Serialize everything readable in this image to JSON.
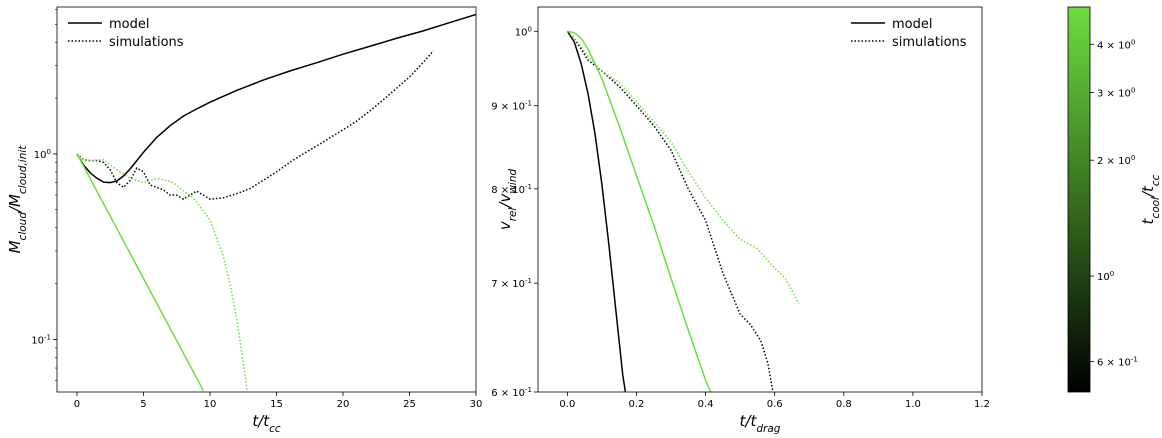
{
  "chart_data": [
    {
      "type": "line",
      "xlabel": "t/t_cc",
      "ylabel": "M_cloud/M_cloud,init",
      "yscale": "log",
      "xlim": [
        -1.5,
        30
      ],
      "ylim": [
        0.052,
        6.2
      ],
      "x_ticks": [
        "0",
        "5",
        "10",
        "15",
        "20",
        "25",
        "30"
      ],
      "y_ticks": [
        "10^-1",
        "10^0"
      ],
      "legend": {
        "placement": "top-left",
        "entries": [
          "model",
          "simulations"
        ]
      },
      "series": [
        {
          "name": "model",
          "style": "solid",
          "color": "#000000",
          "x": [
            0,
            0.5,
            1,
            1.5,
            2,
            2.5,
            3,
            3.5,
            4,
            4.5,
            5,
            6,
            7,
            8,
            9,
            10,
            12,
            14,
            16,
            18,
            20,
            22,
            24,
            26,
            28,
            30
          ],
          "y": [
            1.0,
            0.87,
            0.79,
            0.74,
            0.705,
            0.7,
            0.715,
            0.76,
            0.83,
            0.92,
            1.02,
            1.23,
            1.42,
            1.6,
            1.75,
            1.9,
            2.2,
            2.5,
            2.8,
            3.1,
            3.45,
            3.8,
            4.2,
            4.6,
            5.1,
            5.65
          ]
        },
        {
          "name": "simulations",
          "style": "dotted",
          "color": "#000000",
          "x": [
            0,
            0.5,
            1,
            1.5,
            2,
            2.5,
            3,
            3.5,
            4,
            4.5,
            5,
            5.5,
            6,
            6.5,
            7,
            7.5,
            8,
            8.5,
            9,
            9.5,
            10,
            11,
            12,
            13,
            14,
            15,
            16,
            17,
            18,
            19,
            20,
            21,
            22,
            23,
            24,
            25,
            26,
            26.8
          ],
          "y": [
            1.0,
            0.93,
            0.92,
            0.92,
            0.9,
            0.82,
            0.7,
            0.66,
            0.72,
            0.84,
            0.8,
            0.68,
            0.66,
            0.64,
            0.6,
            0.6,
            0.57,
            0.6,
            0.63,
            0.6,
            0.57,
            0.58,
            0.61,
            0.65,
            0.72,
            0.8,
            0.9,
            1.0,
            1.1,
            1.22,
            1.35,
            1.5,
            1.7,
            1.95,
            2.25,
            2.6,
            3.1,
            3.6
          ]
        },
        {
          "name": "",
          "style": "solid",
          "color": "#6ddd3f",
          "x": [
            0,
            9.5
          ],
          "y": [
            1.0,
            0.053
          ]
        },
        {
          "name": "",
          "style": "dotted",
          "color": "#6ddd3f",
          "x": [
            0,
            0.5,
            1,
            1.5,
            2,
            3,
            4,
            5,
            6,
            7,
            7.5,
            8,
            8.5,
            9,
            10,
            11,
            11.5,
            12,
            12.5,
            12.8
          ],
          "y": [
            1.0,
            0.92,
            0.92,
            0.93,
            0.93,
            0.82,
            0.74,
            0.7,
            0.74,
            0.71,
            0.68,
            0.63,
            0.6,
            0.55,
            0.44,
            0.28,
            0.2,
            0.13,
            0.075,
            0.053
          ]
        }
      ]
    },
    {
      "type": "line",
      "xlabel": "t/t_drag",
      "ylabel": "v_rel/v_wind",
      "yscale": "log",
      "xlim": [
        -0.085,
        1.2
      ],
      "ylim": [
        0.6,
        1.035
      ],
      "x_ticks": [
        "0.0",
        "0.2",
        "0.4",
        "0.6",
        "0.8",
        "1.0",
        "1.2"
      ],
      "y_ticks": [
        "6 × 10^-1",
        "7 × 10^-1",
        "8 × 10^-1",
        "9 × 10^-1",
        "10^0"
      ],
      "legend": {
        "placement": "top-right",
        "entries": [
          "model",
          "simulations"
        ]
      },
      "series": [
        {
          "name": "model",
          "style": "solid",
          "color": "#000000",
          "x": [
            0.0,
            0.02,
            0.04,
            0.06,
            0.08,
            0.1,
            0.12,
            0.14,
            0.16,
            0.168
          ],
          "y": [
            1.0,
            0.985,
            0.955,
            0.915,
            0.865,
            0.805,
            0.74,
            0.675,
            0.615,
            0.6
          ]
        },
        {
          "name": "simulations",
          "style": "dotted",
          "color": "#000000",
          "x": [
            0.0,
            0.02,
            0.04,
            0.06,
            0.1,
            0.15,
            0.2,
            0.25,
            0.3,
            0.35,
            0.4,
            0.45,
            0.5,
            0.53,
            0.56,
            0.58,
            0.595
          ],
          "y": [
            1.0,
            0.99,
            0.975,
            0.96,
            0.945,
            0.925,
            0.9,
            0.875,
            0.845,
            0.8,
            0.765,
            0.71,
            0.67,
            0.66,
            0.645,
            0.625,
            0.6
          ]
        },
        {
          "name": "",
          "style": "solid",
          "color": "#6ddd3f",
          "x": [
            0.0,
            0.02,
            0.04,
            0.06,
            0.1,
            0.15,
            0.2,
            0.25,
            0.3,
            0.35,
            0.4,
            0.415
          ],
          "y": [
            1.0,
            0.998,
            0.99,
            0.975,
            0.935,
            0.875,
            0.815,
            0.76,
            0.705,
            0.655,
            0.61,
            0.6
          ]
        },
        {
          "name": "",
          "style": "dotted",
          "color": "#6ddd3f",
          "x": [
            0.0,
            0.03,
            0.06,
            0.1,
            0.15,
            0.2,
            0.25,
            0.3,
            0.35,
            0.4,
            0.45,
            0.5,
            0.55,
            0.6,
            0.63,
            0.67
          ],
          "y": [
            1.0,
            0.985,
            0.965,
            0.945,
            0.93,
            0.905,
            0.88,
            0.855,
            0.82,
            0.79,
            0.765,
            0.745,
            0.735,
            0.715,
            0.705,
            0.68
          ]
        }
      ]
    },
    {
      "type": "colorbar",
      "label": "t_cool/t_cc",
      "scale": "log",
      "range": [
        0.5,
        5.0
      ],
      "color_low": "#000000",
      "color_high": "#6ddd3f",
      "ticks": [
        {
          "value": 0.6,
          "label": "6 × 10^-1"
        },
        {
          "value": 1.0,
          "label": "10^0"
        },
        {
          "value": 2.0,
          "label": "2 × 10^0"
        },
        {
          "value": 3.0,
          "label": "3 × 10^0"
        },
        {
          "value": 4.0,
          "label": "4 × 10^0"
        }
      ]
    }
  ]
}
